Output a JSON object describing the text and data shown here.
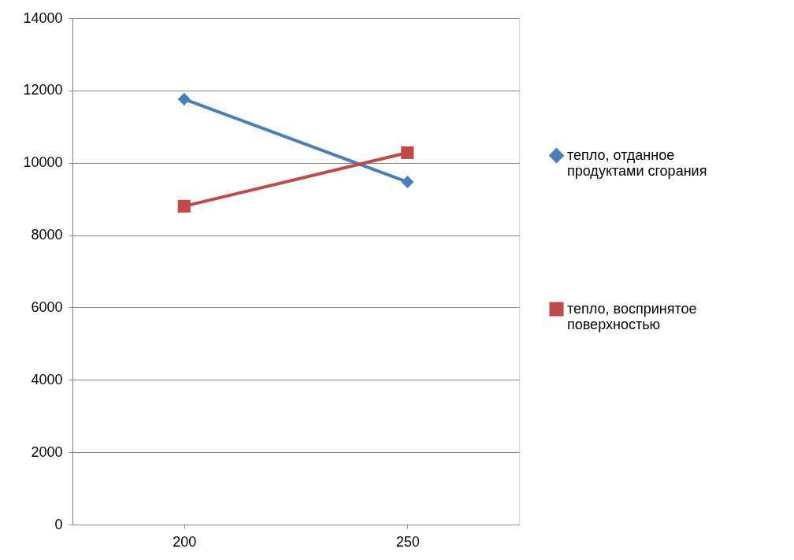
{
  "chart_data": {
    "type": "line",
    "categories": [
      "200",
      "250"
    ],
    "series": [
      {
        "name": "тепло, отданное продуктами сгорания",
        "color": "#4a7ebb",
        "marker": "diamond",
        "values": [
          11760,
          9470
        ]
      },
      {
        "name": "тепло, воспринятое поверхностью",
        "color": "#be4b48",
        "marker": "square",
        "values": [
          8800,
          10280
        ]
      }
    ],
    "ylim": [
      0,
      14000
    ],
    "yticks": [
      0,
      2000,
      4000,
      6000,
      8000,
      10000,
      12000,
      14000
    ],
    "grid": "y",
    "legend": "right",
    "line_style": "solid"
  }
}
